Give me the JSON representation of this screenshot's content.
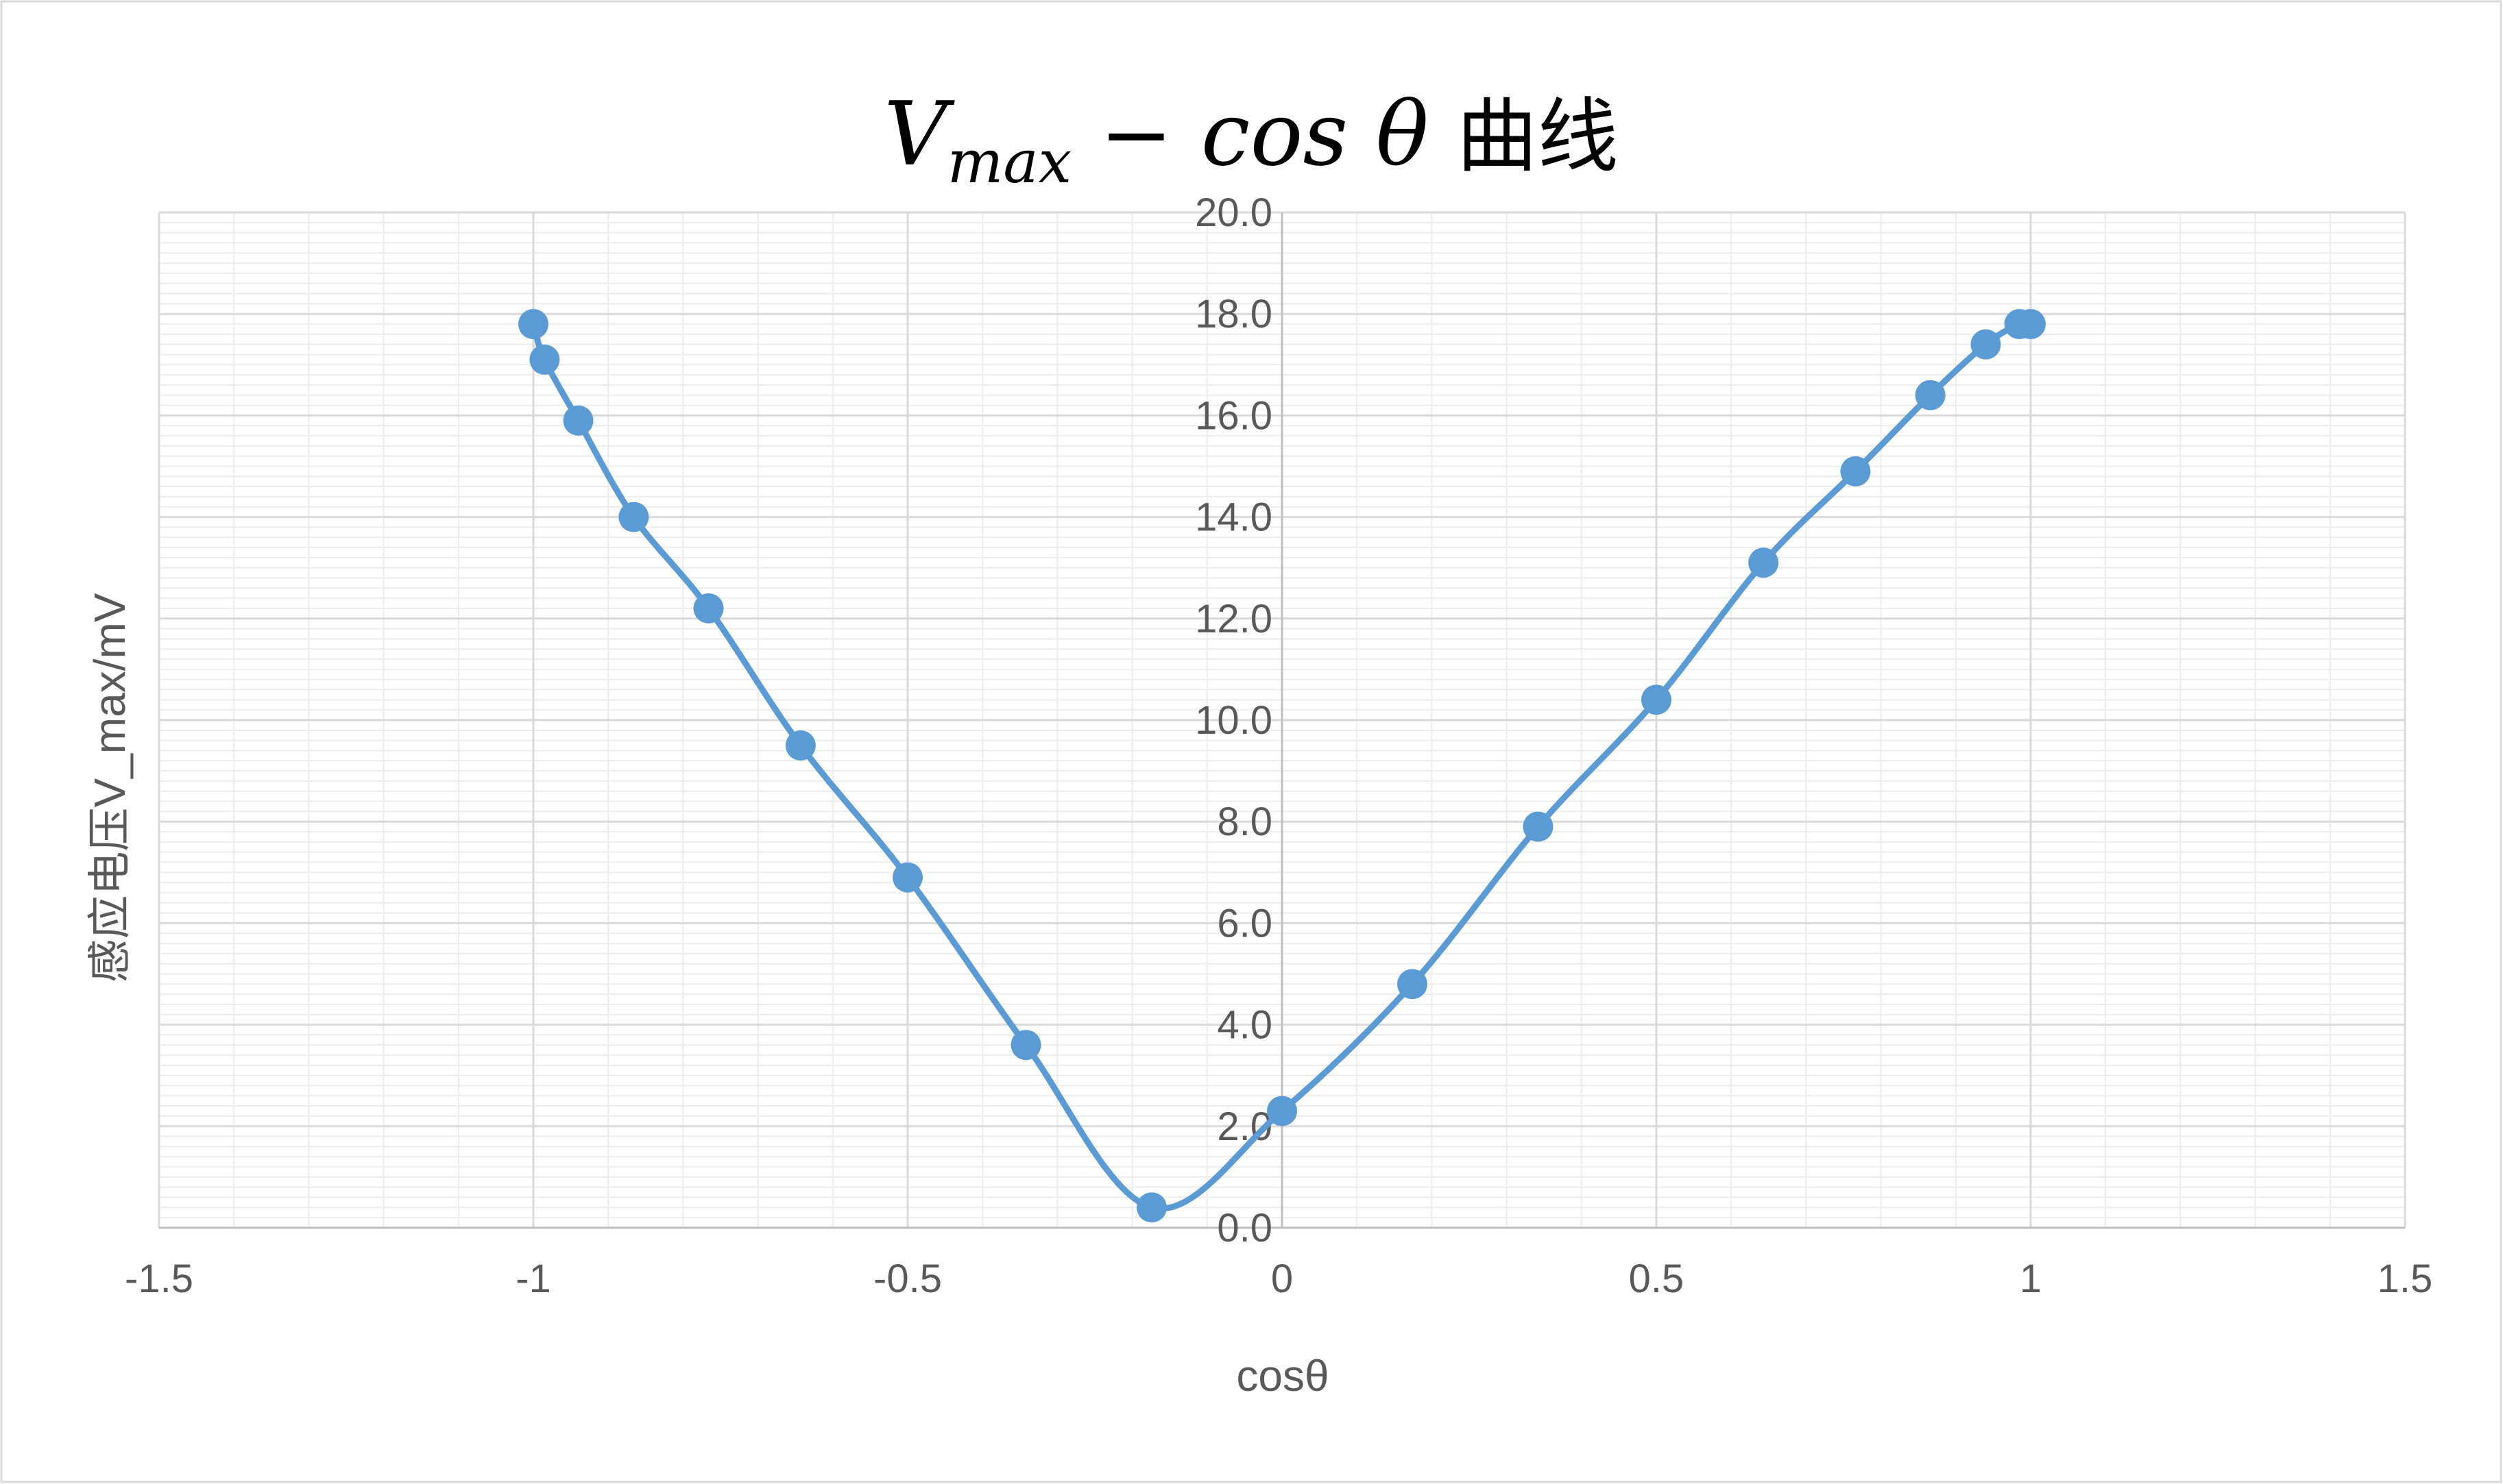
{
  "chart_data": {
    "type": "scatter",
    "title": {
      "main": "V",
      "sub": "max",
      "rest": " − cos θ ",
      "cn": "曲线"
    },
    "xlabel": "cosθ",
    "ylabel": "感应电压V_max/mV",
    "xlim": [
      -1.5,
      1.5
    ],
    "ylim": [
      0,
      20
    ],
    "x_ticks": [
      "-1.5",
      "-1",
      "-0.5",
      "0",
      "0.5",
      "1",
      "1.5"
    ],
    "x_tick_values": [
      -1.5,
      -1,
      -0.5,
      0,
      0.5,
      1,
      1.5
    ],
    "y_ticks": [
      "0.0",
      "2.0",
      "4.0",
      "6.0",
      "8.0",
      "10.0",
      "12.0",
      "14.0",
      "16.0",
      "18.0",
      "20.0"
    ],
    "y_tick_values": [
      0,
      2,
      4,
      6,
      8,
      10,
      12,
      14,
      16,
      18,
      20
    ],
    "grid": true,
    "line_style": "smooth",
    "series": [
      {
        "color": "#5b9bd5",
        "points": [
          {
            "x": -1.0,
            "y": 17.8
          },
          {
            "x": -0.985,
            "y": 17.1
          },
          {
            "x": -0.94,
            "y": 15.9
          },
          {
            "x": -0.866,
            "y": 14.0
          },
          {
            "x": -0.766,
            "y": 12.2
          },
          {
            "x": -0.643,
            "y": 9.5
          },
          {
            "x": -0.5,
            "y": 6.9
          },
          {
            "x": -0.342,
            "y": 3.6
          },
          {
            "x": -0.174,
            "y": 0.4
          },
          {
            "x": 0.0,
            "y": 2.3
          },
          {
            "x": 0.174,
            "y": 4.8
          },
          {
            "x": 0.342,
            "y": 7.9
          },
          {
            "x": 0.5,
            "y": 10.4
          },
          {
            "x": 0.643,
            "y": 13.1
          },
          {
            "x": 0.766,
            "y": 14.9
          },
          {
            "x": 0.866,
            "y": 16.4
          },
          {
            "x": 0.94,
            "y": 17.4
          },
          {
            "x": 0.985,
            "y": 17.8
          },
          {
            "x": 1.0,
            "y": 17.8
          }
        ]
      }
    ]
  }
}
